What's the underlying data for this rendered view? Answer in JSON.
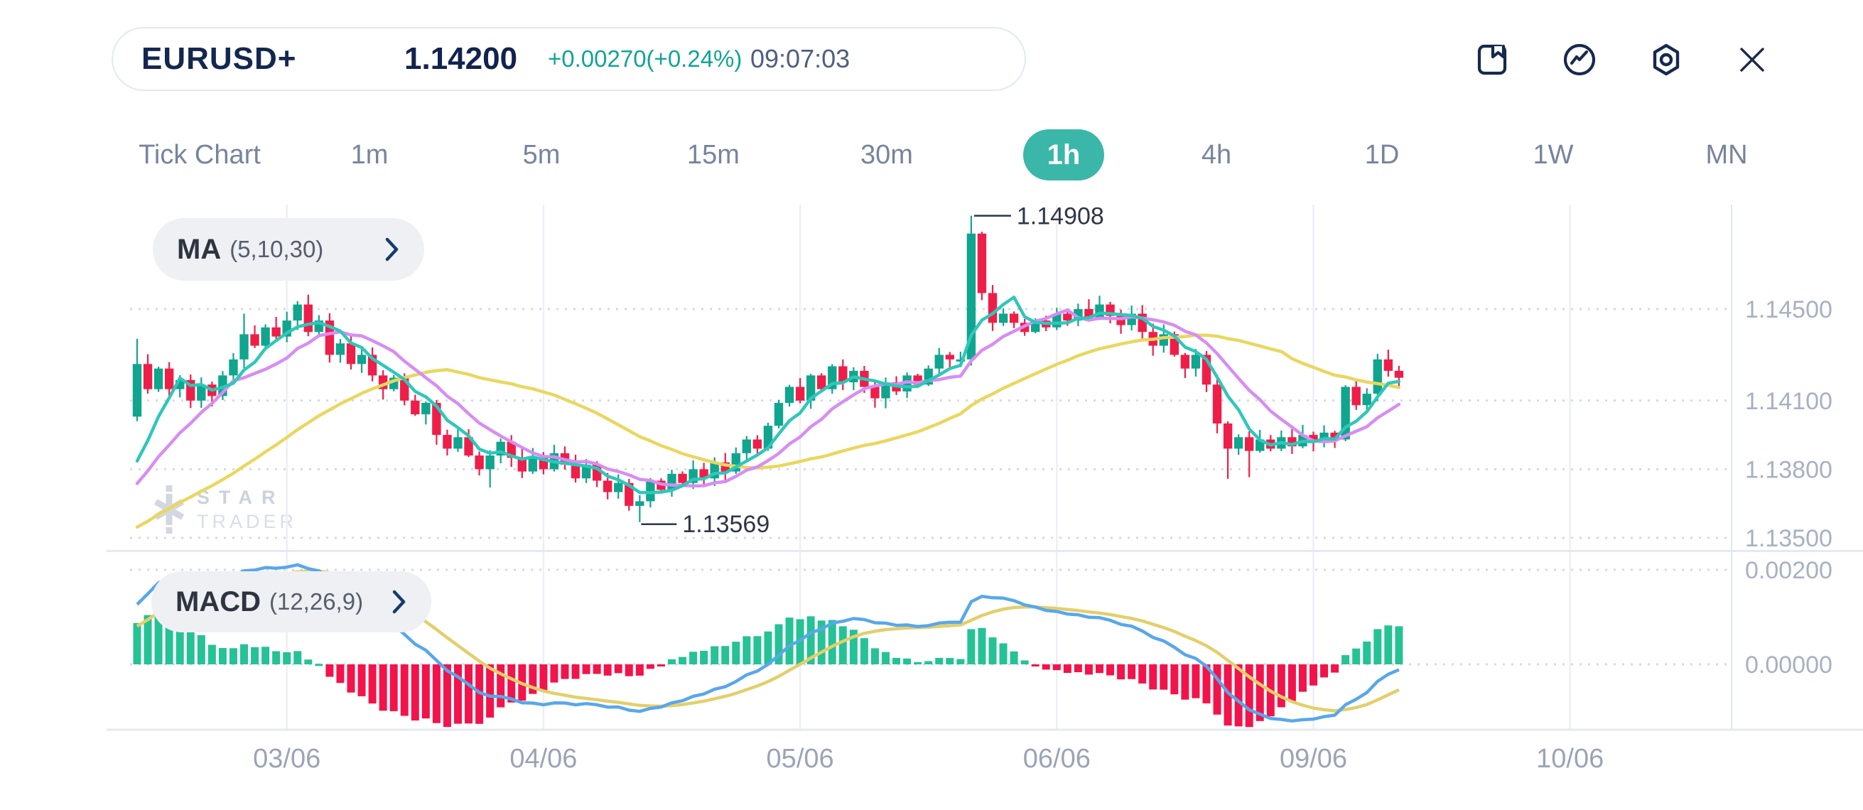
{
  "header": {
    "symbol": "EURUSD+",
    "price": "1.14200",
    "change": "+0.00270(+0.24%)",
    "time": "09:07:03"
  },
  "toolbar": {
    "icons": [
      "bookmark",
      "market-trend",
      "settings",
      "close"
    ]
  },
  "timeframe_tabs": {
    "items": [
      "Tick Chart",
      "1m",
      "5m",
      "15m",
      "30m",
      "1h",
      "4h",
      "1D",
      "1W",
      "MN"
    ],
    "active": "1h",
    "active_index": 5,
    "active_color": "#3bb7a9"
  },
  "indicator_pills": {
    "ma": {
      "name": "MA",
      "params": "(5,10,30)"
    },
    "macd": {
      "name": "MACD",
      "params": "(12,26,9)"
    }
  },
  "watermark": {
    "line1": "STAR",
    "line2": "TRADER"
  },
  "chart_data": {
    "type": "candlestick_with_macd",
    "timeframe": "1h",
    "price_axis": {
      "ticks": [
        {
          "value": 1.145,
          "label": "1.14500"
        },
        {
          "value": 1.141,
          "label": "1.14100"
        },
        {
          "value": 1.138,
          "label": "1.13800"
        },
        {
          "value": 1.135,
          "label": "1.13500"
        }
      ]
    },
    "macd_axis": {
      "ticks": [
        {
          "value": 0.002,
          "label": "0.00200"
        },
        {
          "value": 0.0,
          "label": "0.00000"
        }
      ]
    },
    "x_axis": {
      "ticks": [
        {
          "index": 14,
          "label": "03/06"
        },
        {
          "index": 38,
          "label": "04/06"
        },
        {
          "index": 62,
          "label": "05/06"
        },
        {
          "index": 86,
          "label": "06/06"
        },
        {
          "index": 110,
          "label": "09/06"
        },
        {
          "index": 134,
          "label": "10/06"
        }
      ]
    },
    "annotations": {
      "high": {
        "index": 78,
        "price": 1.14908,
        "label": "1.14908"
      },
      "low": {
        "index": 47,
        "price": 1.13569,
        "label": "1.13569"
      }
    },
    "candles": {
      "first_open": 1.1403,
      "closes": [
        1.1426,
        1.1415,
        1.1424,
        1.1415,
        1.1419,
        1.141,
        1.1417,
        1.1412,
        1.1421,
        1.1428,
        1.1439,
        1.1434,
        1.1442,
        1.1438,
        1.1445,
        1.1452,
        1.144,
        1.1445,
        1.143,
        1.1435,
        1.1426,
        1.143,
        1.1421,
        1.1415,
        1.142,
        1.141,
        1.1404,
        1.1409,
        1.1395,
        1.1389,
        1.1394,
        1.1386,
        1.138,
        1.1386,
        1.1392,
        1.1385,
        1.1379,
        1.1385,
        1.138,
        1.1387,
        1.1382,
        1.1376,
        1.1382,
        1.1375,
        1.137,
        1.1374,
        1.1364,
        1.1366,
        1.1375,
        1.1371,
        1.1378,
        1.1374,
        1.138,
        1.1376,
        1.1383,
        1.1379,
        1.1387,
        1.1393,
        1.1389,
        1.1399,
        1.1409,
        1.1416,
        1.141,
        1.1421,
        1.1415,
        1.1425,
        1.1418,
        1.1423,
        1.1416,
        1.1411,
        1.1418,
        1.1414,
        1.1421,
        1.1417,
        1.1424,
        1.143,
        1.1428,
        1.1428,
        1.1483,
        1.1457,
        1.1444,
        1.1448,
        1.1444,
        1.144,
        1.1445,
        1.1442,
        1.1448,
        1.1445,
        1.145,
        1.1446,
        1.1452,
        1.1447,
        1.1443,
        1.1448,
        1.144,
        1.1434,
        1.1439,
        1.143,
        1.1424,
        1.143,
        1.1417,
        1.14,
        1.1389,
        1.1394,
        1.1388,
        1.1393,
        1.1389,
        1.1394,
        1.139,
        1.1395,
        1.1392,
        1.1396,
        1.1393,
        1.1416,
        1.1408,
        1.1413,
        1.1428,
        1.1423,
        1.142
      ],
      "overrides": {
        "0": {
          "high": 1.1437,
          "low": 1.1401
        },
        "10": {
          "high": 1.1448
        },
        "15": {
          "high": 1.14535
        },
        "33": {
          "low": 1.1372
        },
        "47": {
          "low": 1.13569
        },
        "78": {
          "high": 1.14908
        },
        "102": {
          "low": 1.13758
        },
        "104": {
          "low": 1.13765
        }
      }
    },
    "indicators": {
      "ma_periods": [
        5,
        10,
        30
      ],
      "macd_params": [
        12,
        26,
        9
      ],
      "lead_in": [
        1.1336,
        1.1337,
        1.1336,
        1.1338,
        1.1339,
        1.1338,
        1.134,
        1.1341,
        1.1342,
        1.1343,
        1.1344,
        1.1345,
        1.1346,
        1.1347,
        1.1348,
        1.1349,
        1.135,
        1.1352,
        1.1354,
        1.1356,
        1.1358,
        1.136,
        1.1362,
        1.1364,
        1.1366,
        1.1368,
        1.137,
        1.1372,
        1.1374,
        1.1376
      ]
    },
    "colors": {
      "up": "#10a58e",
      "down": "#ef1e49",
      "ma5": "#2fc7ba",
      "ma10": "#d78df2",
      "ma30": "#e9d75f",
      "macd_line": "#58a7eb",
      "signal_line": "#e3cf6b",
      "hist_up": "#25c295",
      "hist_down": "#f3134b",
      "grid_dotted": "#d5dae2",
      "grid_vertical": "#edeff4",
      "axis_label": "#a7b1c2",
      "x_label": "#9aa4b6",
      "annotation": "#2e3547"
    }
  }
}
